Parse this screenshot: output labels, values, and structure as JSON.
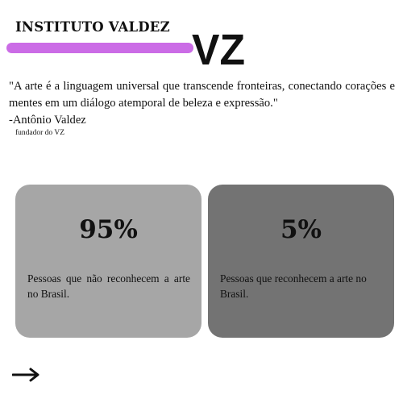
{
  "header": {
    "title": "INSTITUTO VALDEZ",
    "logo_text": "VZ"
  },
  "quote": {
    "text": "\"A arte é a linguagem universal que transcende fronteiras, conectando corações e mentes em um diálogo atemporal de beleza e expressão.\"",
    "author": "-Antônio Valdez",
    "author_role": "fundador do VZ"
  },
  "stats": [
    {
      "value": "95%",
      "description": "Pessoas que não reconhecem a arte no Brasil.",
      "color": "#a6a6a6"
    },
    {
      "value": "5%",
      "description": "Pessoas que reconhecem a arte no Brasil.",
      "color": "#737373"
    }
  ],
  "colors": {
    "accent": "#cb6ce6",
    "text": "#111111",
    "background": "#ffffff"
  },
  "icons": {
    "next": "arrow-right-icon"
  }
}
